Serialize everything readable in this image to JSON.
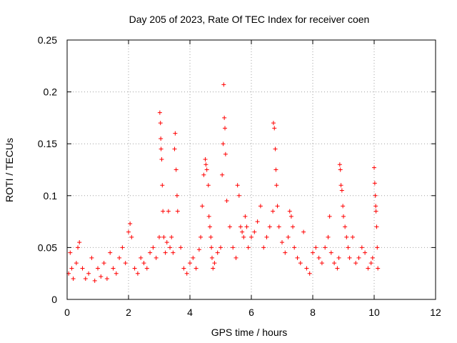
{
  "chart_data": {
    "type": "scatter",
    "title": "Day 205 of 2023, Rate Of TEC Index for receiver coen",
    "xlabel": "GPS time / hours",
    "ylabel": "ROTI / TECUs",
    "xlim": [
      0,
      12
    ],
    "ylim": [
      0,
      0.25
    ],
    "xticks": [
      0,
      2,
      4,
      6,
      8,
      10,
      12
    ],
    "xtick_labels": [
      "0",
      "2",
      "4",
      "6",
      "8",
      "10",
      "12"
    ],
    "yticks": [
      0,
      0.05,
      0.1,
      0.15,
      0.2,
      0.25
    ],
    "ytick_labels": [
      "0",
      "0.05",
      "0.1",
      "0.15",
      "0.2",
      "0.25"
    ],
    "grid": true,
    "marker": "+",
    "color": "#ff0000",
    "series": [
      {
        "name": "ROTI",
        "x": [
          0.05,
          0.1,
          0.15,
          0.2,
          0.3,
          0.35,
          0.4,
          0.5,
          0.6,
          0.7,
          0.8,
          0.9,
          1.0,
          1.1,
          1.2,
          1.3,
          1.4,
          1.5,
          1.6,
          1.7,
          1.8,
          1.9,
          2.0,
          2.05,
          2.1,
          2.2,
          2.3,
          2.4,
          2.5,
          2.6,
          2.7,
          2.8,
          2.9,
          3.0,
          3.02,
          3.04,
          3.05,
          3.06,
          3.08,
          3.1,
          3.12,
          3.15,
          3.2,
          3.25,
          3.3,
          3.35,
          3.4,
          3.45,
          3.5,
          3.52,
          3.55,
          3.58,
          3.6,
          3.7,
          3.8,
          3.9,
          4.0,
          4.1,
          4.2,
          4.3,
          4.35,
          4.4,
          4.45,
          4.5,
          4.52,
          4.55,
          4.6,
          4.62,
          4.65,
          4.68,
          4.7,
          4.72,
          4.75,
          4.8,
          4.9,
          5.0,
          5.05,
          5.08,
          5.1,
          5.12,
          5.14,
          5.16,
          5.2,
          5.3,
          5.4,
          5.5,
          5.55,
          5.6,
          5.65,
          5.7,
          5.75,
          5.8,
          5.85,
          5.9,
          6.0,
          6.1,
          6.2,
          6.3,
          6.4,
          6.5,
          6.6,
          6.7,
          6.72,
          6.75,
          6.78,
          6.8,
          6.82,
          6.85,
          6.9,
          7.0,
          7.1,
          7.2,
          7.25,
          7.3,
          7.35,
          7.4,
          7.5,
          7.6,
          7.7,
          7.8,
          7.9,
          8.0,
          8.1,
          8.2,
          8.3,
          8.4,
          8.5,
          8.55,
          8.6,
          8.7,
          8.8,
          8.85,
          8.88,
          8.9,
          8.92,
          8.95,
          8.98,
          9.0,
          9.05,
          9.1,
          9.15,
          9.2,
          9.3,
          9.4,
          9.5,
          9.6,
          9.7,
          9.8,
          9.9,
          9.95,
          10.0,
          10.02,
          10.04,
          10.05,
          10.06,
          10.08,
          10.1,
          10.12
        ],
        "y": [
          0.025,
          0.045,
          0.03,
          0.02,
          0.035,
          0.05,
          0.055,
          0.03,
          0.02,
          0.025,
          0.04,
          0.018,
          0.03,
          0.022,
          0.035,
          0.02,
          0.045,
          0.03,
          0.025,
          0.04,
          0.05,
          0.035,
          0.065,
          0.073,
          0.06,
          0.03,
          0.025,
          0.04,
          0.035,
          0.03,
          0.045,
          0.05,
          0.04,
          0.06,
          0.18,
          0.17,
          0.155,
          0.145,
          0.135,
          0.11,
          0.085,
          0.06,
          0.045,
          0.055,
          0.085,
          0.05,
          0.06,
          0.045,
          0.145,
          0.16,
          0.125,
          0.1,
          0.085,
          0.05,
          0.03,
          0.025,
          0.035,
          0.04,
          0.03,
          0.048,
          0.06,
          0.09,
          0.12,
          0.135,
          0.13,
          0.125,
          0.11,
          0.08,
          0.07,
          0.06,
          0.05,
          0.04,
          0.03,
          0.035,
          0.045,
          0.05,
          0.12,
          0.15,
          0.207,
          0.175,
          0.165,
          0.14,
          0.095,
          0.07,
          0.05,
          0.04,
          0.11,
          0.1,
          0.07,
          0.065,
          0.06,
          0.08,
          0.07,
          0.05,
          0.06,
          0.065,
          0.075,
          0.09,
          0.05,
          0.06,
          0.07,
          0.085,
          0.17,
          0.165,
          0.145,
          0.125,
          0.11,
          0.09,
          0.07,
          0.055,
          0.045,
          0.06,
          0.085,
          0.08,
          0.07,
          0.05,
          0.04,
          0.035,
          0.065,
          0.03,
          0.025,
          0.045,
          0.05,
          0.04,
          0.035,
          0.05,
          0.06,
          0.08,
          0.045,
          0.035,
          0.03,
          0.04,
          0.13,
          0.125,
          0.11,
          0.105,
          0.09,
          0.08,
          0.07,
          0.06,
          0.05,
          0.04,
          0.06,
          0.035,
          0.04,
          0.05,
          0.045,
          0.03,
          0.035,
          0.04,
          0.127,
          0.112,
          0.1,
          0.09,
          0.085,
          0.07,
          0.05,
          0.03
        ]
      }
    ]
  }
}
